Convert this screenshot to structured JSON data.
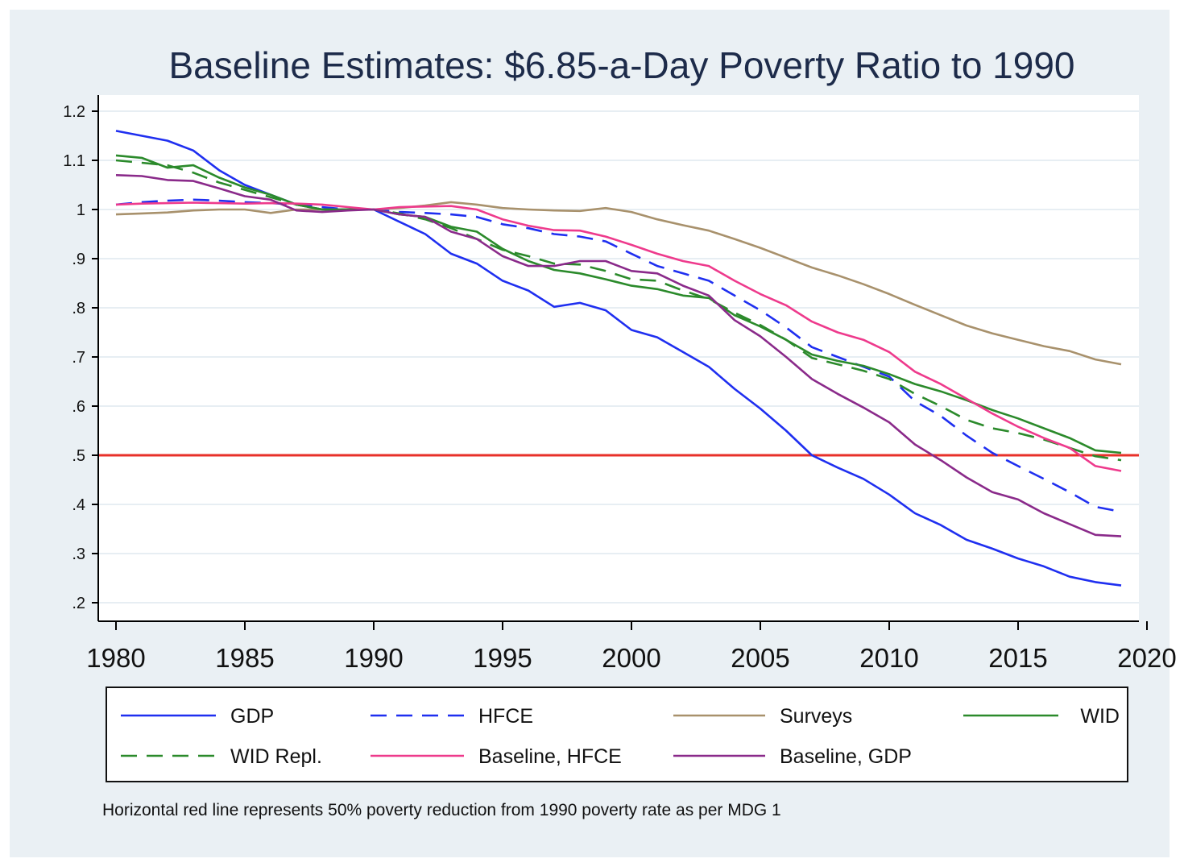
{
  "chart_data": {
    "type": "line",
    "title": "Baseline Estimates: $6.85-a-Day Poverty Ratio to 1990",
    "xlabel": "",
    "ylabel": "",
    "xlim": [
      1980,
      2020
    ],
    "ylim": [
      0.2,
      1.2
    ],
    "x_ticks": [
      1980,
      1985,
      1990,
      1995,
      2000,
      2005,
      2010,
      2015,
      2020
    ],
    "x_tick_labels": [
      "1980",
      "1985",
      "1990",
      "1995",
      "2000",
      "2005",
      "2010",
      "2015",
      "2020"
    ],
    "y_ticks": [
      0.2,
      0.3,
      0.4,
      0.5,
      0.6,
      0.7,
      0.8,
      0.9,
      1.0,
      1.1,
      1.2
    ],
    "y_tick_labels": [
      ".2",
      ".3",
      ".4",
      ".5",
      ".6",
      ".7",
      ".8",
      ".9",
      "1",
      "1.1",
      "1.2"
    ],
    "grid": true,
    "legend_position": "bottom",
    "reference_line": {
      "y": 0.5,
      "color": "#e8302a"
    },
    "note": "Horizontal red line represents 50% poverty reduction from 1990 poverty rate as per MDG 1",
    "x": [
      1980,
      1981,
      1982,
      1983,
      1984,
      1985,
      1986,
      1987,
      1988,
      1989,
      1990,
      1991,
      1992,
      1993,
      1994,
      1995,
      1996,
      1997,
      1998,
      1999,
      2000,
      2001,
      2002,
      2003,
      2004,
      2005,
      2006,
      2007,
      2008,
      2009,
      2010,
      2011,
      2012,
      2013,
      2014,
      2015,
      2016,
      2017,
      2018,
      2019
    ],
    "series": [
      {
        "name": "GDP",
        "color": "#1f2ff0",
        "dash": "solid",
        "values": [
          1.16,
          1.15,
          1.14,
          1.12,
          1.08,
          1.05,
          1.03,
          1.01,
          1.0,
          1.0,
          1.0,
          0.975,
          0.95,
          0.91,
          0.89,
          0.855,
          0.835,
          0.802,
          0.81,
          0.795,
          0.755,
          0.74,
          0.71,
          0.68,
          0.635,
          0.595,
          0.55,
          0.5,
          0.475,
          0.452,
          0.42,
          0.382,
          0.358,
          0.328,
          0.31,
          0.29,
          0.274,
          0.253,
          0.242,
          0.235
        ]
      },
      {
        "name": "HFCE",
        "color": "#1f2ff0",
        "dash": "dashed",
        "values": [
          1.01,
          1.015,
          1.018,
          1.02,
          1.018,
          1.015,
          1.013,
          1.01,
          1.005,
          1.0,
          1.0,
          0.995,
          0.993,
          0.99,
          0.985,
          0.97,
          0.962,
          0.95,
          0.945,
          0.935,
          0.91,
          0.885,
          0.87,
          0.855,
          0.825,
          0.795,
          0.76,
          0.72,
          0.7,
          0.68,
          0.66,
          0.61,
          0.58,
          0.54,
          0.505,
          0.478,
          0.452,
          0.425,
          0.395,
          0.385
        ]
      },
      {
        "name": "Surveys",
        "color": "#a8916c",
        "dash": "solid",
        "values": [
          0.99,
          0.992,
          0.994,
          0.998,
          1.0,
          1.0,
          0.993,
          1.0,
          1.0,
          1.0,
          1.0,
          1.003,
          1.008,
          1.015,
          1.01,
          1.003,
          1.0,
          0.998,
          0.997,
          1.003,
          0.995,
          0.98,
          0.968,
          0.957,
          0.94,
          0.922,
          0.902,
          0.882,
          0.866,
          0.848,
          0.828,
          0.806,
          0.785,
          0.764,
          0.748,
          0.735,
          0.722,
          0.712,
          0.695,
          0.685
        ]
      },
      {
        "name": "WID",
        "color": "#2b8a2b",
        "dash": "solid",
        "values": [
          1.11,
          1.105,
          1.085,
          1.09,
          1.065,
          1.045,
          1.03,
          1.01,
          1.0,
          1.0,
          1.0,
          0.99,
          0.985,
          0.965,
          0.955,
          0.92,
          0.895,
          0.877,
          0.87,
          0.858,
          0.845,
          0.838,
          0.825,
          0.82,
          0.785,
          0.762,
          0.735,
          0.705,
          0.692,
          0.682,
          0.665,
          0.645,
          0.63,
          0.612,
          0.592,
          0.575,
          0.555,
          0.535,
          0.51,
          0.505
        ]
      },
      {
        "name": "WID Repl.",
        "color": "#2b8a2b",
        "dash": "dashed",
        "values": [
          1.1,
          1.095,
          1.09,
          1.075,
          1.055,
          1.04,
          1.025,
          1.01,
          1.0,
          1.0,
          1.0,
          0.992,
          0.98,
          0.962,
          0.94,
          0.918,
          0.905,
          0.89,
          0.888,
          0.875,
          0.858,
          0.855,
          0.835,
          0.818,
          0.79,
          0.765,
          0.735,
          0.698,
          0.685,
          0.672,
          0.655,
          0.625,
          0.6,
          0.572,
          0.555,
          0.545,
          0.532,
          0.515,
          0.498,
          0.49
        ]
      },
      {
        "name": "Baseline, HFCE",
        "color": "#ee3a8c",
        "dash": "solid",
        "values": [
          1.01,
          1.012,
          1.013,
          1.014,
          1.013,
          1.012,
          1.013,
          1.012,
          1.01,
          1.005,
          1.0,
          1.005,
          1.006,
          1.007,
          1.0,
          0.98,
          0.967,
          0.958,
          0.957,
          0.945,
          0.928,
          0.91,
          0.895,
          0.885,
          0.855,
          0.828,
          0.805,
          0.772,
          0.75,
          0.735,
          0.71,
          0.67,
          0.645,
          0.615,
          0.585,
          0.558,
          0.535,
          0.515,
          0.478,
          0.468
        ]
      },
      {
        "name": "Baseline, GDP",
        "color": "#8a2a8a",
        "dash": "solid",
        "values": [
          1.07,
          1.068,
          1.06,
          1.058,
          1.043,
          1.027,
          1.02,
          0.998,
          0.995,
          0.998,
          1.0,
          0.99,
          0.985,
          0.955,
          0.94,
          0.905,
          0.885,
          0.885,
          0.895,
          0.895,
          0.875,
          0.87,
          0.845,
          0.825,
          0.775,
          0.742,
          0.7,
          0.655,
          0.625,
          0.597,
          0.567,
          0.522,
          0.49,
          0.455,
          0.425,
          0.41,
          0.382,
          0.36,
          0.338,
          0.335
        ]
      }
    ]
  }
}
